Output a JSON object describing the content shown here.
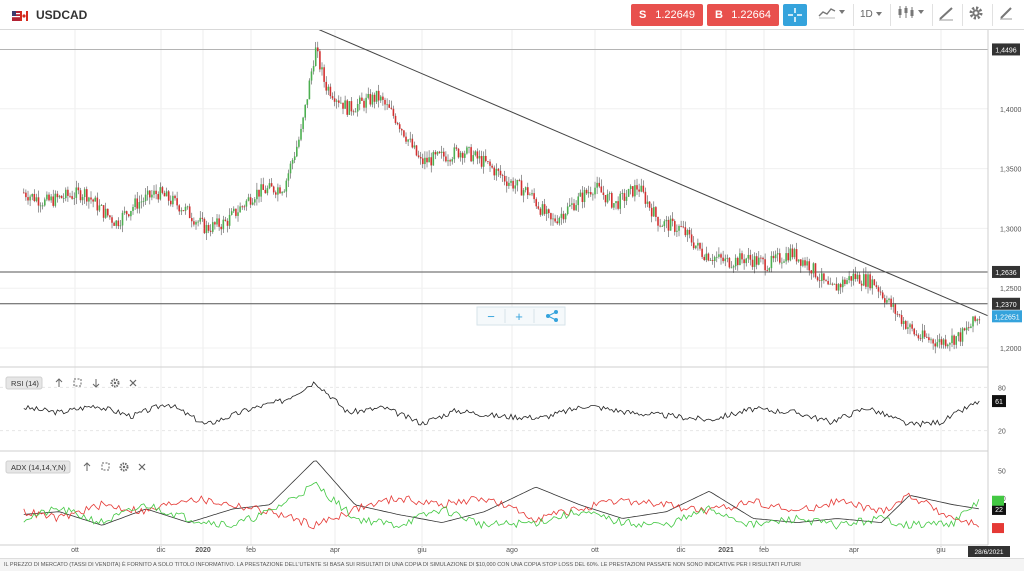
{
  "header": {
    "symbol": "USDCAD",
    "flag_icon": "us-canada-flag-icon",
    "sell": {
      "label": "S",
      "price": "1.22649",
      "color": "#e8504d"
    },
    "buy": {
      "label": "B",
      "price": "1.22664",
      "color": "#e8504d"
    },
    "crosshair_color": "#35a3dc",
    "timeframe": "1D",
    "icons": [
      "crosshair-icon",
      "line-chart-icon",
      "candlestick-icon",
      "pencil-icon",
      "gear-icon",
      "brush-icon"
    ]
  },
  "toolbar_overlay": {
    "zoom_out": "−",
    "zoom_in": "+",
    "share_icon": "share-icon"
  },
  "chart_data": [
    {
      "type": "candlestick",
      "symbol": "USDCAD",
      "y_range": [
        1.19,
        1.46
      ],
      "y_ticks": [
        "1,4000",
        "1,3500",
        "1,3000",
        "1,2500",
        "1,2000"
      ],
      "x_labels": [
        "ott",
        "dic",
        "2020",
        "feb",
        "apr",
        "giu",
        "ago",
        "ott",
        "dic",
        "2021",
        "feb",
        "apr",
        "giu"
      ],
      "price_levels": [
        {
          "label": "1,4496",
          "value": 1.4496
        },
        {
          "label": "1,2636",
          "value": 1.2636
        },
        {
          "label": "1,2370",
          "value": 1.237
        }
      ],
      "current_price": {
        "label": "1,22651",
        "value": 1.22651,
        "color": "#35a3dc"
      },
      "trendline": {
        "from": {
          "date": "2020-03-17",
          "price": 1.468
        },
        "to": {
          "date": "2021-06-28",
          "price": 1.23
        }
      },
      "colors": {
        "up": "#4caf50",
        "down": "#d32f2f"
      },
      "path": [
        [
          "2019-08-26",
          1.33
        ],
        [
          "2019-09-10",
          1.322
        ],
        [
          "2019-09-25",
          1.327
        ],
        [
          "2019-10-08",
          1.33
        ],
        [
          "2019-10-20",
          1.315
        ],
        [
          "2019-10-30",
          1.305
        ],
        [
          "2019-11-12",
          1.32
        ],
        [
          "2019-11-28",
          1.33
        ],
        [
          "2019-12-15",
          1.318
        ],
        [
          "2020-01-01",
          1.3
        ],
        [
          "2020-01-15",
          1.305
        ],
        [
          "2020-02-05",
          1.33
        ],
        [
          "2020-02-25",
          1.335
        ],
        [
          "2020-03-08",
          1.38
        ],
        [
          "2020-03-18",
          1.45
        ],
        [
          "2020-03-25",
          1.42
        ],
        [
          "2020-04-10",
          1.4
        ],
        [
          "2020-05-01",
          1.41
        ],
        [
          "2020-05-15",
          1.39
        ],
        [
          "2020-05-31",
          1.355
        ],
        [
          "2020-06-15",
          1.36
        ],
        [
          "2020-06-30",
          1.365
        ],
        [
          "2020-07-15",
          1.355
        ],
        [
          "2020-07-31",
          1.34
        ],
        [
          "2020-08-15",
          1.33
        ],
        [
          "2020-08-31",
          1.305
        ],
        [
          "2020-09-15",
          1.32
        ],
        [
          "2020-09-30",
          1.335
        ],
        [
          "2020-10-15",
          1.32
        ],
        [
          "2020-10-31",
          1.335
        ],
        [
          "2020-11-15",
          1.305
        ],
        [
          "2020-11-30",
          1.3
        ],
        [
          "2020-12-15",
          1.28
        ],
        [
          "2021-01-01",
          1.272
        ],
        [
          "2021-01-15",
          1.275
        ],
        [
          "2021-01-31",
          1.27
        ],
        [
          "2021-02-15",
          1.28
        ],
        [
          "2021-02-28",
          1.27
        ],
        [
          "2021-03-15",
          1.248
        ],
        [
          "2021-03-31",
          1.26
        ],
        [
          "2021-04-15",
          1.255
        ],
        [
          "2021-04-30",
          1.23
        ],
        [
          "2021-05-15",
          1.21
        ],
        [
          "2021-05-31",
          1.205
        ],
        [
          "2021-06-15",
          1.21
        ],
        [
          "2021-06-28",
          1.226
        ]
      ]
    },
    {
      "type": "line",
      "name": "RSI (14)",
      "levels": [
        "80",
        "20"
      ],
      "current_label": "61",
      "y_range": [
        0,
        100
      ],
      "path": [
        [
          "2019-08-26",
          52
        ],
        [
          "2019-09-20",
          45
        ],
        [
          "2019-10-15",
          55
        ],
        [
          "2019-11-10",
          40
        ],
        [
          "2019-12-05",
          58
        ],
        [
          "2020-01-01",
          28
        ],
        [
          "2020-02-01",
          50
        ],
        [
          "2020-02-25",
          62
        ],
        [
          "2020-03-18",
          88
        ],
        [
          "2020-04-10",
          45
        ],
        [
          "2020-05-05",
          52
        ],
        [
          "2020-06-01",
          30
        ],
        [
          "2020-06-25",
          48
        ],
        [
          "2020-07-25",
          40
        ],
        [
          "2020-08-25",
          38
        ],
        [
          "2020-09-25",
          55
        ],
        [
          "2020-10-25",
          45
        ],
        [
          "2020-11-25",
          40
        ],
        [
          "2020-12-20",
          35
        ],
        [
          "2021-01-20",
          50
        ],
        [
          "2021-02-20",
          45
        ],
        [
          "2021-03-15",
          32
        ],
        [
          "2021-04-10",
          52
        ],
        [
          "2021-05-10",
          28
        ],
        [
          "2021-06-01",
          32
        ],
        [
          "2021-06-28",
          61
        ]
      ]
    },
    {
      "type": "line",
      "name": "ADX (14,14,Y,N)",
      "levels": [
        "50",
        "30"
      ],
      "current_label": "22",
      "y_range": [
        0,
        60
      ],
      "series": [
        {
          "color": "#333333",
          "path": [
            [
              "2019-08-26",
              18
            ],
            [
              "2019-09-20",
              20
            ],
            [
              "2019-10-20",
              10
            ],
            [
              "2019-11-20",
              22
            ],
            [
              "2019-12-20",
              12
            ],
            [
              "2020-01-20",
              22
            ],
            [
              "2020-02-15",
              25
            ],
            [
              "2020-03-18",
              58
            ],
            [
              "2020-04-15",
              25
            ],
            [
              "2020-05-15",
              18
            ],
            [
              "2020-06-15",
              12
            ],
            [
              "2020-07-15",
              20
            ],
            [
              "2020-08-20",
              38
            ],
            [
              "2020-09-20",
              25
            ],
            [
              "2020-10-20",
              15
            ],
            [
              "2020-11-20",
              20
            ],
            [
              "2020-12-20",
              35
            ],
            [
              "2021-01-20",
              15
            ],
            [
              "2021-02-20",
              12
            ],
            [
              "2021-03-20",
              15
            ],
            [
              "2021-04-20",
              12
            ],
            [
              "2021-05-10",
              32
            ],
            [
              "2021-06-10",
              25
            ],
            [
              "2021-06-28",
              22
            ]
          ]
        },
        {
          "color": "#e53935",
          "path": [
            [
              "2019-08-26",
              20
            ],
            [
              "2019-09-20",
              15
            ],
            [
              "2019-10-20",
              25
            ],
            [
              "2019-11-20",
              20
            ],
            [
              "2019-12-20",
              30
            ],
            [
              "2020-01-20",
              25
            ],
            [
              "2020-02-15",
              20
            ],
            [
              "2020-03-18",
              10
            ],
            [
              "2020-04-15",
              22
            ],
            [
              "2020-05-15",
              30
            ],
            [
              "2020-06-15",
              25
            ],
            [
              "2020-07-15",
              30
            ],
            [
              "2020-08-20",
              15
            ],
            [
              "2020-09-20",
              22
            ],
            [
              "2020-10-20",
              28
            ],
            [
              "2020-11-20",
              25
            ],
            [
              "2020-12-20",
              20
            ],
            [
              "2021-01-20",
              28
            ],
            [
              "2021-02-20",
              20
            ],
            [
              "2021-03-20",
              28
            ],
            [
              "2021-04-20",
              20
            ],
            [
              "2021-05-10",
              32
            ],
            [
              "2021-06-10",
              15
            ],
            [
              "2021-06-28",
              10
            ]
          ]
        },
        {
          "color": "#43c843",
          "path": [
            [
              "2019-08-26",
              15
            ],
            [
              "2019-09-20",
              22
            ],
            [
              "2019-10-20",
              12
            ],
            [
              "2019-11-20",
              25
            ],
            [
              "2019-12-20",
              15
            ],
            [
              "2020-01-20",
              10
            ],
            [
              "2020-02-15",
              20
            ],
            [
              "2020-03-18",
              40
            ],
            [
              "2020-04-15",
              15
            ],
            [
              "2020-05-15",
              10
            ],
            [
              "2020-06-15",
              22
            ],
            [
              "2020-07-15",
              10
            ],
            [
              "2020-08-20",
              12
            ],
            [
              "2020-09-20",
              20
            ],
            [
              "2020-10-20",
              12
            ],
            [
              "2020-11-20",
              10
            ],
            [
              "2020-12-20",
              22
            ],
            [
              "2021-01-20",
              10
            ],
            [
              "2021-02-20",
              15
            ],
            [
              "2021-03-20",
              10
            ],
            [
              "2021-04-20",
              15
            ],
            [
              "2021-05-10",
              10
            ],
            [
              "2021-06-10",
              12
            ],
            [
              "2021-06-28",
              28
            ]
          ]
        }
      ]
    }
  ],
  "indicator_toolbar_icons": [
    "arrow-up-icon",
    "expand-icon",
    "arrow-down-icon",
    "gear-icon",
    "close-icon"
  ],
  "date_label": "28/6/2021",
  "disclaimer": "IL PREZZO DI MERCATO (TASSI DI VENDITA) È FORNITO A SOLO TITOLO INFORMATIVO. LA PRESTAZIONE DELL'UTENTE SI BASA SUI RISULTATI DI UNA COPIA DI SIMULAZIONE DI $10,000 CON UNA COPIA STOP LOSS DEL 60%. LE PRESTAZIONI PASSATE NON SONO INDICATIVE PER I RISULTATI FUTURI"
}
